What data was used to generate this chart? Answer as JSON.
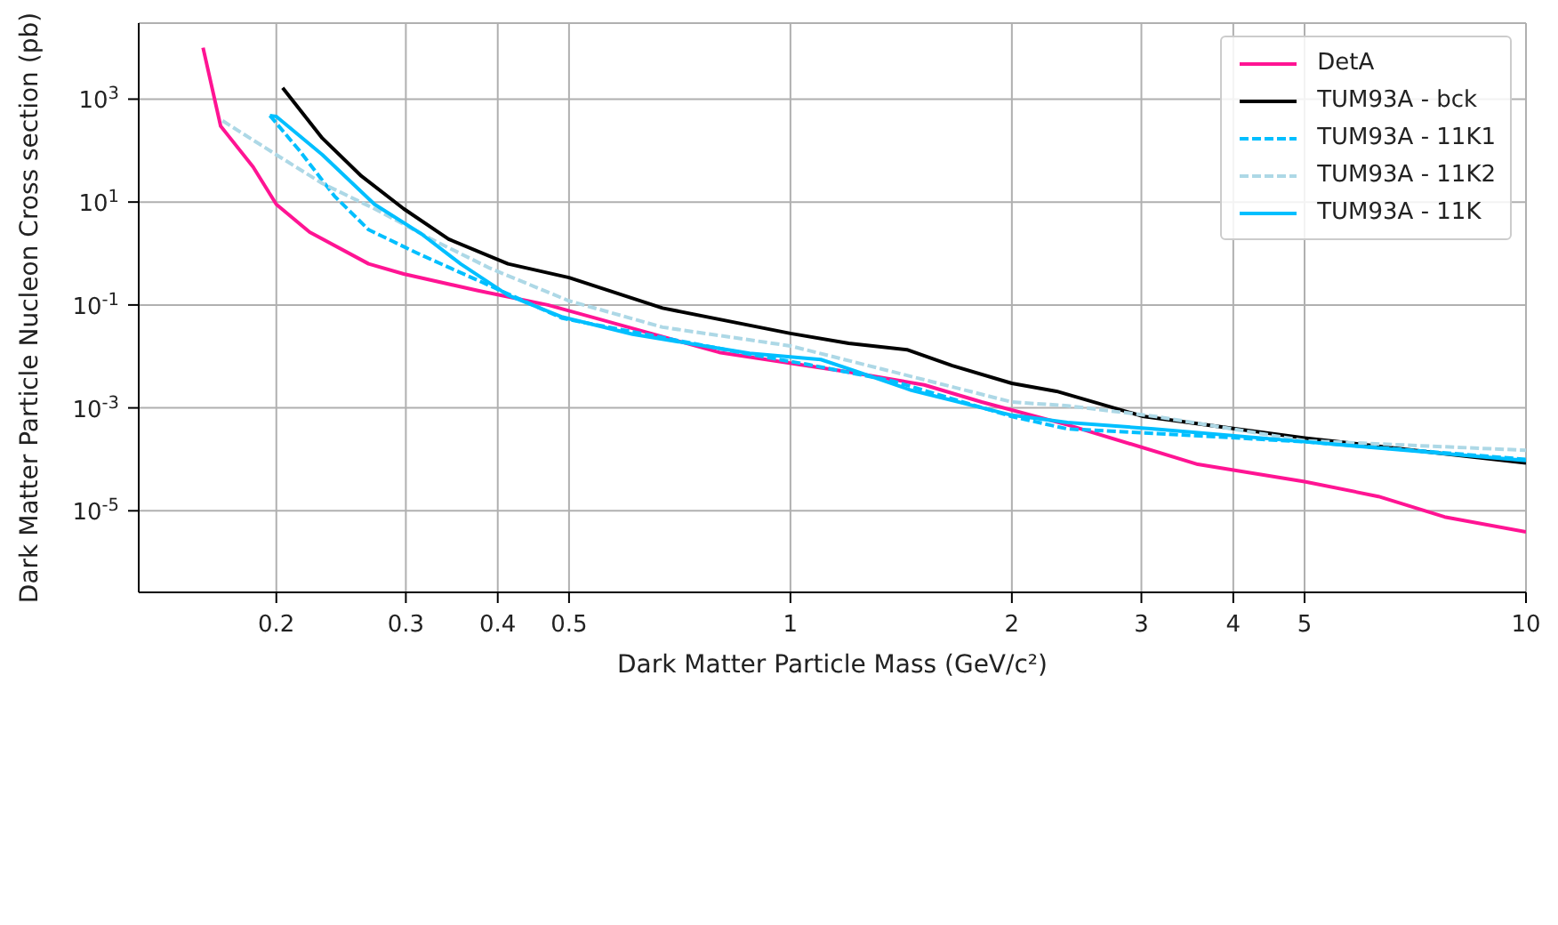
{
  "chart_data": {
    "type": "line",
    "xlabel": "Dark Matter Particle Mass (GeV/c²)",
    "ylabel": "Dark Matter Particle Nucleon Cross section (pb)",
    "log": "xy",
    "grid": true,
    "legend": "top right",
    "xlim": [
      0.13,
      10
    ],
    "ylim": [
      2.6e-07,
      30000.0
    ],
    "xticks": [
      0.2,
      0.3,
      0.4,
      0.5,
      1,
      2,
      3,
      4,
      5,
      10
    ],
    "yticks": [
      {
        "value": 1e-05,
        "label": "10$^{-5}$"
      },
      {
        "value": 0.001,
        "label": "10$^{-3}$"
      },
      {
        "value": 0.1,
        "label": "10$^{-1}$"
      },
      {
        "value": 10,
        "label": "10$^{1}$"
      },
      {
        "value": 1000,
        "label": "10$^{3}$"
      }
    ],
    "series": [
      {
        "name": "DetA",
        "color": "#ff1493",
        "line_style": "solid",
        "x": [
          0.159,
          0.168,
          0.186,
          0.2,
          0.222,
          0.267,
          0.298,
          0.376,
          0.468,
          0.8,
          1.2,
          1.52,
          1.82,
          2.38,
          3.58,
          5.0,
          6.3,
          7.75,
          10
        ],
        "values": [
          10000,
          300,
          48,
          9,
          2.6,
          0.63,
          0.4,
          0.19,
          0.1,
          0.012,
          0.005,
          0.0028,
          0.0013,
          0.00047,
          8e-05,
          3.7e-05,
          1.9e-05,
          7.6e-06,
          3.9e-06
        ]
      },
      {
        "name": "TUM93A - bck",
        "color": "#000000",
        "line_style": "solid",
        "x": [
          0.204,
          0.231,
          0.261,
          0.298,
          0.343,
          0.413,
          0.5,
          0.67,
          1,
          1.2,
          1.44,
          1.66,
          2,
          2.3,
          3.01,
          4.04,
          5,
          10
        ],
        "values": [
          1660,
          174,
          32,
          7.4,
          1.9,
          0.63,
          0.34,
          0.087,
          0.028,
          0.018,
          0.0135,
          0.0066,
          0.003,
          0.0021,
          0.00069,
          0.00039,
          0.00026,
          8.5e-05
        ]
      },
      {
        "name": "TUM93A - 11K1",
        "color": "#00bfff",
        "line_style": "dashed",
        "x": [
          0.196,
          0.215,
          0.24,
          0.267,
          0.315,
          0.376,
          0.49,
          0.88,
          1.06,
          1.38,
          2,
          2.38,
          3.12,
          5,
          10
        ],
        "values": [
          480,
          100,
          13,
          2.9,
          0.93,
          0.3,
          0.055,
          0.011,
          0.0069,
          0.0033,
          0.00068,
          0.00039,
          0.00032,
          0.00022,
          0.0001
        ]
      },
      {
        "name": "TUM93A - 11K2",
        "color": "#add8e6",
        "line_style": "dashed",
        "x": [
          0.169,
          0.2,
          0.231,
          0.272,
          0.325,
          0.39,
          0.5,
          0.67,
          1,
          1.38,
          2,
          2.38,
          3.12,
          5,
          10
        ],
        "values": [
          380,
          83,
          23,
          7.4,
          1.9,
          0.52,
          0.12,
          0.037,
          0.016,
          0.005,
          0.0013,
          0.0011,
          0.00069,
          0.00023,
          0.00015
        ]
      },
      {
        "name": "TUM93A - 11K",
        "color": "#00bfff",
        "line_style": "solid",
        "x": [
          0.196,
          0.2,
          0.231,
          0.272,
          0.315,
          0.356,
          0.413,
          0.49,
          0.61,
          0.88,
          1.1,
          1.22,
          1.46,
          2,
          2.38,
          3.12,
          5,
          10
        ],
        "values": [
          480,
          460,
          83,
          9,
          2.4,
          0.63,
          0.155,
          0.058,
          0.027,
          0.0115,
          0.0087,
          0.0053,
          0.0022,
          0.00072,
          0.00052,
          0.00039,
          0.00022,
          9.5e-05
        ]
      }
    ]
  }
}
